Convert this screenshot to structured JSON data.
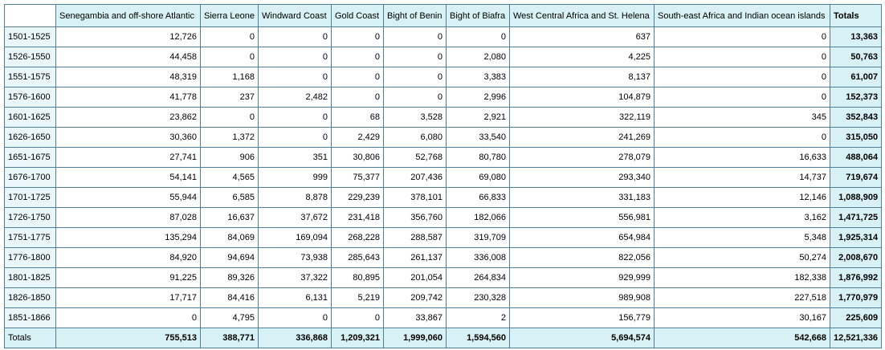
{
  "table": {
    "headers": [
      "Senegambia and off-shore Atlantic",
      "Sierra Leone",
      "Windward Coast",
      "Gold Coast",
      "Bight of Benin",
      "Bight of Biafra",
      "West Central Africa and St. Helena",
      "South-east Africa and Indian ocean islands",
      "Totals"
    ],
    "rows": [
      {
        "label": "1501-1525",
        "values": [
          "12,726",
          "0",
          "0",
          "0",
          "0",
          "0",
          "637",
          "0",
          "13,363"
        ]
      },
      {
        "label": "1526-1550",
        "values": [
          "44,458",
          "0",
          "0",
          "0",
          "0",
          "2,080",
          "4,225",
          "0",
          "50,763"
        ]
      },
      {
        "label": "1551-1575",
        "values": [
          "48,319",
          "1,168",
          "0",
          "0",
          "0",
          "3,383",
          "8,137",
          "0",
          "61,007"
        ]
      },
      {
        "label": "1576-1600",
        "values": [
          "41,778",
          "237",
          "2,482",
          "0",
          "0",
          "2,996",
          "104,879",
          "0",
          "152,373"
        ]
      },
      {
        "label": "1601-1625",
        "values": [
          "23,862",
          "0",
          "0",
          "68",
          "3,528",
          "2,921",
          "322,119",
          "345",
          "352,843"
        ]
      },
      {
        "label": "1626-1650",
        "values": [
          "30,360",
          "1,372",
          "0",
          "2,429",
          "6,080",
          "33,540",
          "241,269",
          "0",
          "315,050"
        ]
      },
      {
        "label": "1651-1675",
        "values": [
          "27,741",
          "906",
          "351",
          "30,806",
          "52,768",
          "80,780",
          "278,079",
          "16,633",
          "488,064"
        ]
      },
      {
        "label": "1676-1700",
        "values": [
          "54,141",
          "4,565",
          "999",
          "75,377",
          "207,436",
          "69,080",
          "293,340",
          "14,737",
          "719,674"
        ]
      },
      {
        "label": "1701-1725",
        "values": [
          "55,944",
          "6,585",
          "8,878",
          "229,239",
          "378,101",
          "66,833",
          "331,183",
          "12,146",
          "1,088,909"
        ]
      },
      {
        "label": "1726-1750",
        "values": [
          "87,028",
          "16,637",
          "37,672",
          "231,418",
          "356,760",
          "182,066",
          "556,981",
          "3,162",
          "1,471,725"
        ]
      },
      {
        "label": "1751-1775",
        "values": [
          "135,294",
          "84,069",
          "169,094",
          "268,228",
          "288,587",
          "319,709",
          "654,984",
          "5,348",
          "1,925,314"
        ]
      },
      {
        "label": "1776-1800",
        "values": [
          "84,920",
          "94,694",
          "73,938",
          "285,643",
          "261,137",
          "336,008",
          "822,056",
          "50,274",
          "2,008,670"
        ]
      },
      {
        "label": "1801-1825",
        "values": [
          "91,225",
          "89,326",
          "37,322",
          "80,895",
          "201,054",
          "264,834",
          "929,999",
          "182,338",
          "1,876,992"
        ]
      },
      {
        "label": "1826-1850",
        "values": [
          "17,717",
          "84,416",
          "6,131",
          "5,219",
          "209,742",
          "230,328",
          "989,908",
          "227,518",
          "1,770,979"
        ]
      },
      {
        "label": "1851-1866",
        "values": [
          "0",
          "4,795",
          "0",
          "0",
          "33,867",
          "2",
          "156,779",
          "30,167",
          "225,609"
        ]
      },
      {
        "label": "Totals",
        "values": [
          "755,513",
          "388,771",
          "336,868",
          "1,209,321",
          "1,999,060",
          "1,594,560",
          "5,694,574",
          "542,668",
          "12,521,336"
        ]
      }
    ]
  }
}
